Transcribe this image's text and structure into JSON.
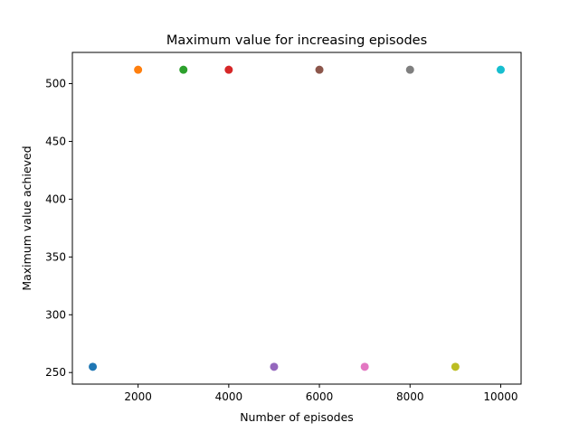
{
  "chart_data": {
    "type": "scatter",
    "title": "Maximum value for increasing episodes",
    "xlabel": "Number of episodes",
    "ylabel": "Maximum value achieved",
    "xlim": [
      550,
      10450
    ],
    "ylim": [
      240,
      527
    ],
    "xticks": [
      2000,
      4000,
      6000,
      8000,
      10000
    ],
    "yticks": [
      250,
      300,
      350,
      400,
      450,
      500
    ],
    "grid": false,
    "points": [
      {
        "x": 1000,
        "y": 255,
        "color": "#1f77b4"
      },
      {
        "x": 2000,
        "y": 512,
        "color": "#ff7f0e"
      },
      {
        "x": 3000,
        "y": 512,
        "color": "#2ca02c"
      },
      {
        "x": 4000,
        "y": 512,
        "color": "#d62728"
      },
      {
        "x": 5000,
        "y": 255,
        "color": "#9467bd"
      },
      {
        "x": 6000,
        "y": 512,
        "color": "#8c564b"
      },
      {
        "x": 7000,
        "y": 255,
        "color": "#e377c2"
      },
      {
        "x": 8000,
        "y": 512,
        "color": "#7f7f7f"
      },
      {
        "x": 9000,
        "y": 255,
        "color": "#bcbd22"
      },
      {
        "x": 10000,
        "y": 512,
        "color": "#17becf"
      }
    ]
  }
}
